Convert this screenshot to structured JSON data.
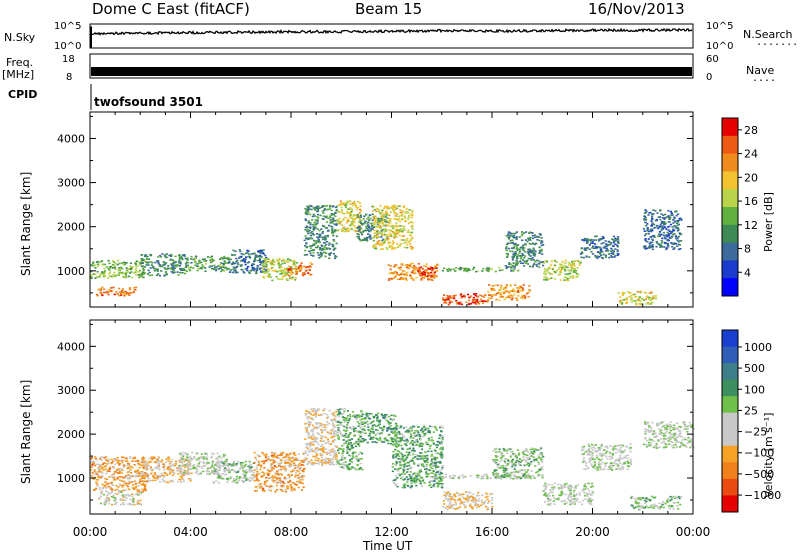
{
  "header": {
    "station": "Dome C East (fitACF)",
    "beam": "Beam 15",
    "date": "16/Nov/2013"
  },
  "aux": {
    "nsky_label": "N.Sky",
    "nsearch_label": "N.Search",
    "freq_label": "Freq.",
    "mhz_label": "[MHz]",
    "nave_label": "Nave",
    "cpid_label": "CPID",
    "cpid_value": "twofsound 3501",
    "noise_ticks_left": [
      "10^5",
      "10^0"
    ],
    "noise_ticks_right": [
      "10^5",
      "10^0"
    ],
    "freq_ticks_left": [
      "18",
      "8"
    ],
    "nave_ticks_right": [
      "60",
      "0"
    ]
  },
  "axes": {
    "xlabel": "Time UT",
    "ylabel": "Slant Range [km]",
    "x_ticks": [
      "00:00",
      "04:00",
      "08:00",
      "12:00",
      "16:00",
      "20:00",
      "00:00"
    ],
    "y_ticks": [
      "1000",
      "2000",
      "3000",
      "4000"
    ]
  },
  "colorbars": {
    "power": {
      "label": "Power [dB]",
      "ticks": [
        "4",
        "8",
        "12",
        "16",
        "20",
        "24",
        "28"
      ],
      "colors": [
        "#0000ff",
        "#1a3ccc",
        "#3c6a9a",
        "#3e8a55",
        "#62b040",
        "#b9d34a",
        "#f3c230",
        "#ef8a1d",
        "#ec5a14",
        "#e60000"
      ]
    },
    "velocity": {
      "label": "Velocity [m s⁻¹]",
      "ticks": [
        "1000",
        "500",
        "100",
        "25",
        "−25",
        "−100",
        "−500",
        "−1000"
      ],
      "colors": [
        "#1a3fcf",
        "#2f5db8",
        "#3e7d8a",
        "#3c8f5e",
        "#6fc04a",
        "#c8c8c8",
        "#c8c8c8",
        "#f5a227",
        "#f0801a",
        "#eb4a10",
        "#e60000"
      ]
    }
  },
  "chart_data": [
    {
      "type": "heatmap",
      "title": "Dome C East (fitACF) Beam 15 16/Nov/2013",
      "quantity": "Power [dB]",
      "xlabel": "Time UT",
      "ylabel": "Slant Range [km]",
      "xlim": [
        0,
        24
      ],
      "ylim": [
        180,
        4600
      ],
      "clim": [
        0,
        30
      ],
      "cells": [
        [
          0.0,
          2.2,
          850,
          1250,
          14
        ],
        [
          0.2,
          1.8,
          450,
          650,
          24
        ],
        [
          2.0,
          3.8,
          900,
          1400,
          10
        ],
        [
          3.8,
          5.5,
          1000,
          1350,
          12
        ],
        [
          5.5,
          7.0,
          950,
          1500,
          8
        ],
        [
          6.8,
          8.2,
          800,
          1300,
          16
        ],
        [
          7.8,
          8.8,
          900,
          1200,
          24
        ],
        [
          8.5,
          9.8,
          1300,
          2500,
          10
        ],
        [
          9.8,
          10.8,
          1900,
          2600,
          18
        ],
        [
          10.6,
          11.8,
          1700,
          2300,
          10
        ],
        [
          11.2,
          12.8,
          1500,
          2500,
          18
        ],
        [
          11.8,
          13.8,
          800,
          1200,
          22
        ],
        [
          13.0,
          13.8,
          900,
          1100,
          28
        ],
        [
          14.0,
          15.8,
          250,
          500,
          26
        ],
        [
          14.0,
          17.0,
          1000,
          1100,
          12
        ],
        [
          15.8,
          17.5,
          350,
          700,
          22
        ],
        [
          16.5,
          18.0,
          1100,
          1900,
          10
        ],
        [
          18.0,
          19.5,
          800,
          1250,
          16
        ],
        [
          19.5,
          21.0,
          1300,
          1800,
          8
        ],
        [
          21.0,
          22.5,
          250,
          550,
          18
        ],
        [
          22.0,
          23.5,
          1500,
          2400,
          8
        ]
      ]
    },
    {
      "type": "heatmap",
      "title": "Dome C East (fitACF) Beam 15 16/Nov/2013",
      "quantity": "Velocity [m s-1]",
      "xlabel": "Time UT",
      "ylabel": "Slant Range [km]",
      "xlim": [
        0,
        24
      ],
      "ylim": [
        180,
        4600
      ],
      "clim": [
        -1000,
        1000
      ],
      "cells": [
        [
          0.0,
          2.2,
          700,
          1500,
          -400
        ],
        [
          0.3,
          2.0,
          400,
          700,
          -100
        ],
        [
          2.0,
          4.0,
          900,
          1500,
          -300
        ],
        [
          3.5,
          5.5,
          1100,
          1600,
          0
        ],
        [
          4.8,
          6.5,
          900,
          1400,
          80
        ],
        [
          6.5,
          8.5,
          700,
          1600,
          -400
        ],
        [
          8.5,
          9.8,
          1300,
          2600,
          -200
        ],
        [
          9.8,
          10.8,
          1200,
          2600,
          200
        ],
        [
          10.8,
          12.2,
          1800,
          2500,
          300
        ],
        [
          12.0,
          14.0,
          800,
          2200,
          250
        ],
        [
          14.0,
          16.0,
          300,
          700,
          -200
        ],
        [
          13.5,
          17.5,
          1000,
          1100,
          0
        ],
        [
          16.0,
          18.0,
          1000,
          1700,
          150
        ],
        [
          18.0,
          20.0,
          400,
          900,
          0
        ],
        [
          19.5,
          21.5,
          1200,
          1800,
          0
        ],
        [
          21.5,
          23.5,
          300,
          600,
          150
        ],
        [
          22.0,
          24.0,
          1700,
          2300,
          0
        ]
      ]
    },
    {
      "type": "line",
      "title": "",
      "xlabel": "Time UT",
      "ylabel": "N.Sky",
      "xlim": [
        0,
        24
      ],
      "ylim": [
        0,
        5
      ],
      "yscale": "log",
      "x": [
        0,
        2,
        4,
        6,
        8,
        10,
        12,
        14,
        16,
        18,
        20,
        22,
        24
      ],
      "series": [
        {
          "values": [
            3.0,
            3.1,
            3.2,
            3.3,
            3.4,
            3.4,
            3.5,
            3.6,
            3.5,
            3.6,
            3.7,
            3.7,
            3.8
          ]
        }
      ]
    },
    {
      "type": "line",
      "title": "",
      "xlabel": "Time UT",
      "ylabel": "Freq. [MHz]",
      "xlim": [
        0,
        24
      ],
      "ylim": [
        8,
        18
      ],
      "x": [
        0,
        24
      ],
      "series": [
        {
          "values": [
            11,
            11
          ]
        }
      ]
    }
  ]
}
